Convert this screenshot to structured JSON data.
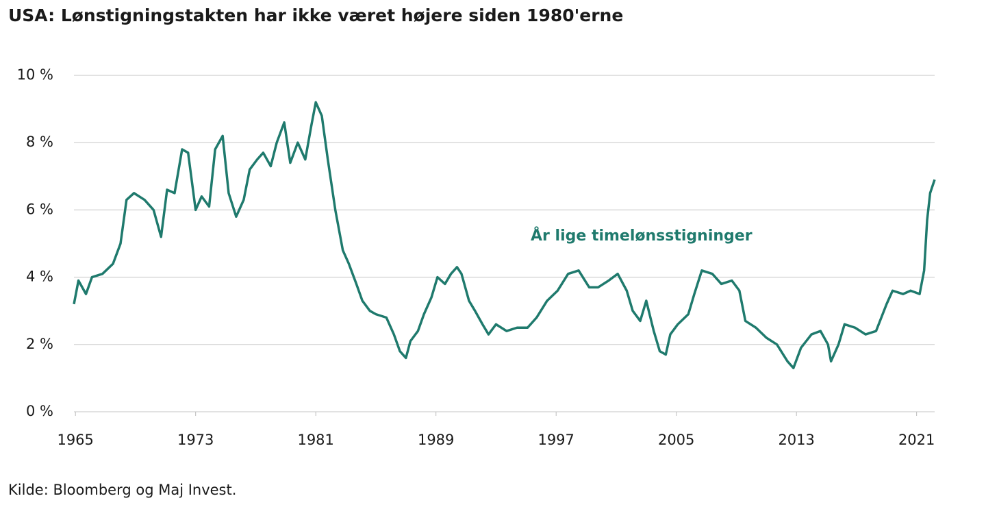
{
  "chart_data": {
    "type": "line",
    "title": "USA: Lønstigningstakten har ikke været højere siden 1980'erne",
    "annotation": "År lige timelønsstigninger",
    "source": "Kilde:  Bloomberg og Maj Invest.",
    "color": "#1f7a6d",
    "grid": true,
    "xlim": [
      1964.9,
      2022.2
    ],
    "xticks": [
      1965,
      1973,
      1981,
      1989,
      1997,
      2005,
      2013,
      2021
    ],
    "ylim": [
      0,
      10
    ],
    "yticks": [
      {
        "value": 0,
        "label": "0 %"
      },
      {
        "value": 2,
        "label": "2 %"
      },
      {
        "value": 4,
        "label": "4 %"
      },
      {
        "value": 6,
        "label": "6 %"
      },
      {
        "value": 8,
        "label": "8 %"
      },
      {
        "value": 10,
        "label": "10 %"
      }
    ],
    "x": [
      1964.9,
      1965.2,
      1965.7,
      1966.1,
      1966.8,
      1967.5,
      1968.0,
      1968.4,
      1968.9,
      1969.6,
      1970.2,
      1970.7,
      1971.1,
      1971.6,
      1972.1,
      1972.5,
      1973.0,
      1973.4,
      1973.9,
      1974.3,
      1974.8,
      1975.2,
      1975.7,
      1976.2,
      1976.6,
      1977.1,
      1977.5,
      1978.0,
      1978.4,
      1978.9,
      1979.3,
      1979.8,
      1980.3,
      1980.7,
      1981.0,
      1981.4,
      1981.8,
      1982.3,
      1982.8,
      1983.2,
      1983.7,
      1984.1,
      1984.6,
      1985.0,
      1985.7,
      1986.2,
      1986.6,
      1987.0,
      1987.3,
      1987.8,
      1988.2,
      1988.7,
      1989.1,
      1989.6,
      1990.0,
      1990.4,
      1990.7,
      1991.2,
      1991.6,
      1992.1,
      1992.5,
      1993.0,
      1993.7,
      1994.4,
      1995.1,
      1995.7,
      1996.4,
      1997.1,
      1997.8,
      1998.5,
      1999.2,
      1999.8,
      2000.5,
      2001.1,
      2001.7,
      2002.1,
      2002.6,
      2003.0,
      2003.5,
      2003.9,
      2004.3,
      2004.6,
      2005.1,
      2005.8,
      2006.2,
      2006.7,
      2007.4,
      2008.0,
      2008.7,
      2009.2,
      2009.6,
      2010.3,
      2011.0,
      2011.7,
      2012.4,
      2012.8,
      2013.3,
      2014.0,
      2014.6,
      2015.1,
      2015.3,
      2015.8,
      2016.2,
      2016.9,
      2017.6,
      2018.3,
      2019.0,
      2019.4,
      2020.1,
      2020.6,
      2021.2,
      2021.5,
      2021.7,
      2021.9,
      2022.2
    ],
    "values": [
      3.2,
      3.9,
      3.5,
      4.0,
      4.1,
      4.4,
      5.0,
      6.3,
      6.5,
      6.3,
      6.0,
      5.2,
      6.6,
      6.5,
      7.8,
      7.7,
      6.0,
      6.4,
      6.1,
      7.8,
      8.2,
      6.5,
      5.8,
      6.3,
      7.2,
      7.5,
      7.7,
      7.3,
      8.0,
      8.6,
      7.4,
      8.0,
      7.5,
      8.5,
      9.2,
      8.8,
      7.5,
      6.0,
      4.8,
      4.4,
      3.8,
      3.3,
      3.0,
      2.9,
      2.8,
      2.3,
      1.8,
      1.6,
      2.1,
      2.4,
      2.9,
      3.4,
      4.0,
      3.8,
      4.1,
      4.3,
      4.1,
      3.3,
      3.0,
      2.6,
      2.3,
      2.6,
      2.4,
      2.5,
      2.5,
      2.8,
      3.3,
      3.6,
      4.1,
      4.2,
      3.7,
      3.7,
      3.9,
      4.1,
      3.6,
      3.0,
      2.7,
      3.3,
      2.4,
      1.8,
      1.7,
      2.3,
      2.6,
      2.9,
      3.5,
      4.2,
      4.1,
      3.8,
      3.9,
      3.6,
      2.7,
      2.5,
      2.2,
      2.0,
      1.5,
      1.3,
      1.9,
      2.3,
      2.4,
      2.0,
      1.5,
      2.0,
      2.6,
      2.5,
      2.3,
      2.4,
      3.2,
      3.6,
      3.5,
      3.6,
      3.5,
      4.2,
      5.7,
      6.5,
      6.9
    ]
  }
}
